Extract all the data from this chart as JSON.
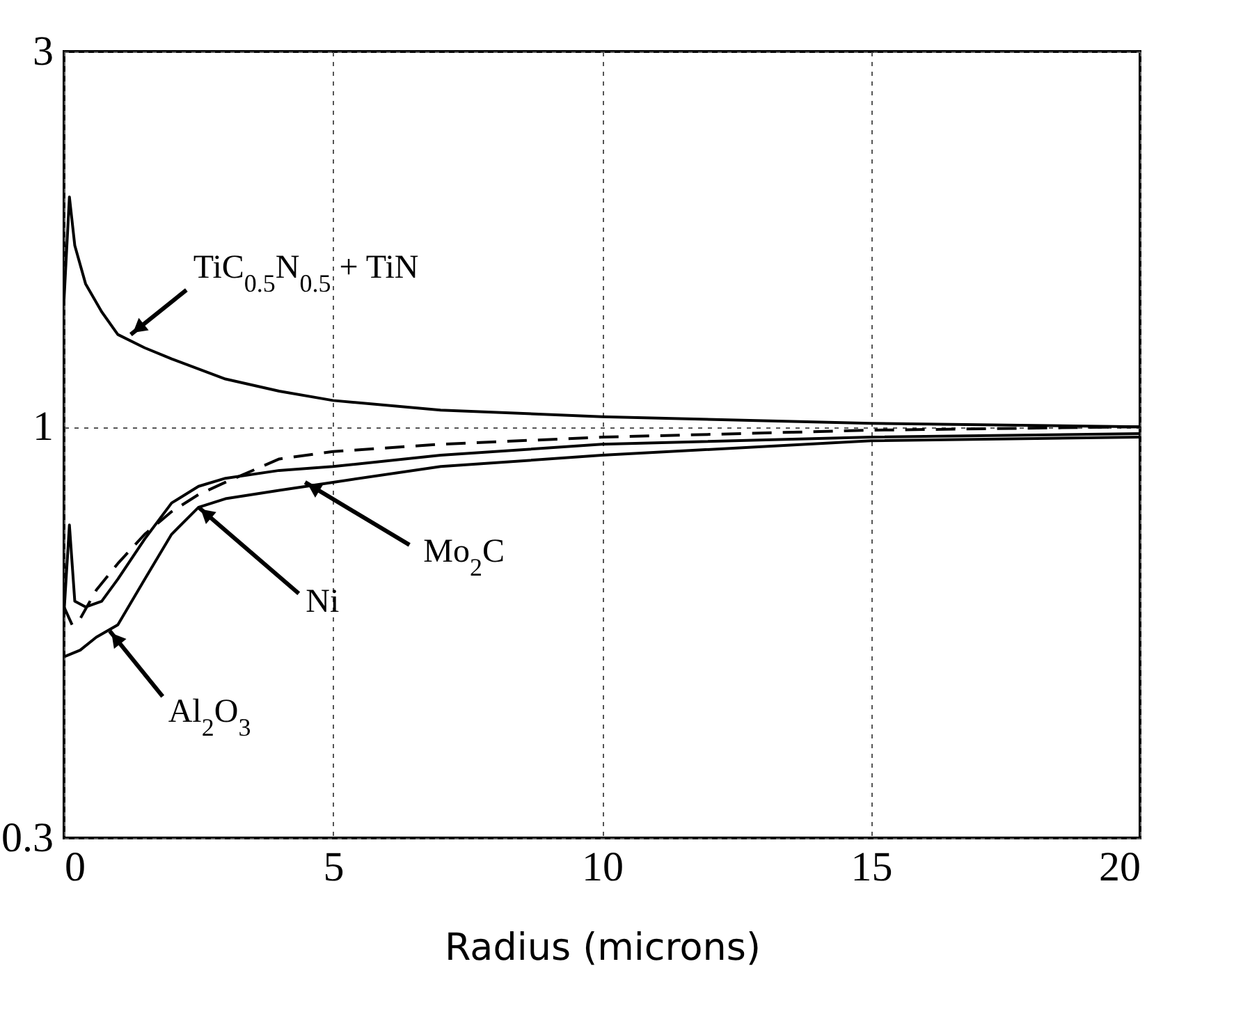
{
  "chart_data": {
    "type": "line",
    "xlabel": "Radius (microns)",
    "xlim": [
      0,
      20
    ],
    "xticks": [
      0,
      5,
      10,
      15,
      20
    ],
    "ylim": [
      0.3,
      3
    ],
    "yticks": [
      0.3,
      1,
      3
    ],
    "log": "y",
    "grid": true,
    "legend": false,
    "marker": "none",
    "series": [
      {
        "color": "#000000",
        "line_style": "solid",
        "x": [
          0,
          0.1,
          0.2,
          0.4,
          0.7,
          1,
          1.5,
          2,
          3,
          4,
          5,
          7,
          10,
          15,
          20
        ],
        "values": [
          1.45,
          1.96,
          1.7,
          1.52,
          1.4,
          1.31,
          1.26,
          1.22,
          1.15,
          1.11,
          1.08,
          1.05,
          1.03,
          1.01,
          1.0
        ]
      },
      {
        "color": "#000000",
        "line_style": "dashed",
        "x": [
          0,
          0.15,
          0.3,
          0.6,
          1,
          1.5,
          2,
          2.5,
          3,
          4,
          5,
          7,
          10,
          15,
          20
        ],
        "values": [
          0.59,
          0.56,
          0.57,
          0.62,
          0.67,
          0.73,
          0.78,
          0.82,
          0.85,
          0.91,
          0.93,
          0.95,
          0.97,
          0.99,
          1.0
        ]
      },
      {
        "color": "#000000",
        "line_style": "solid",
        "x": [
          0,
          0.1,
          0.2,
          0.4,
          0.7,
          1,
          1.5,
          2,
          2.5,
          3,
          4,
          5,
          7,
          10,
          15,
          20
        ],
        "values": [
          0.58,
          0.75,
          0.6,
          0.59,
          0.6,
          0.64,
          0.72,
          0.8,
          0.84,
          0.86,
          0.88,
          0.89,
          0.92,
          0.95,
          0.97,
          0.98
        ]
      },
      {
        "color": "#000000",
        "line_style": "solid",
        "x": [
          0,
          0.3,
          0.6,
          1,
          1.5,
          2,
          2.5,
          3,
          4,
          5,
          7,
          10,
          15,
          20
        ],
        "values": [
          0.51,
          0.52,
          0.54,
          0.56,
          0.64,
          0.73,
          0.79,
          0.81,
          0.83,
          0.85,
          0.89,
          0.92,
          0.96,
          0.97
        ]
      }
    ],
    "annotations": [
      {
        "text": "TiC$_{0.5}$N$_{0.5}$ + TiN",
        "x": 1.24,
        "y": 1.31
      },
      {
        "text": "Mo$_{2}$C",
        "x": 4.48,
        "y": 0.85
      },
      {
        "text": "Ni",
        "x": 2.5,
        "y": 0.79
      },
      {
        "text": "Al$_{2}$O$_{3}$",
        "x": 0.85,
        "y": 0.55
      }
    ]
  }
}
